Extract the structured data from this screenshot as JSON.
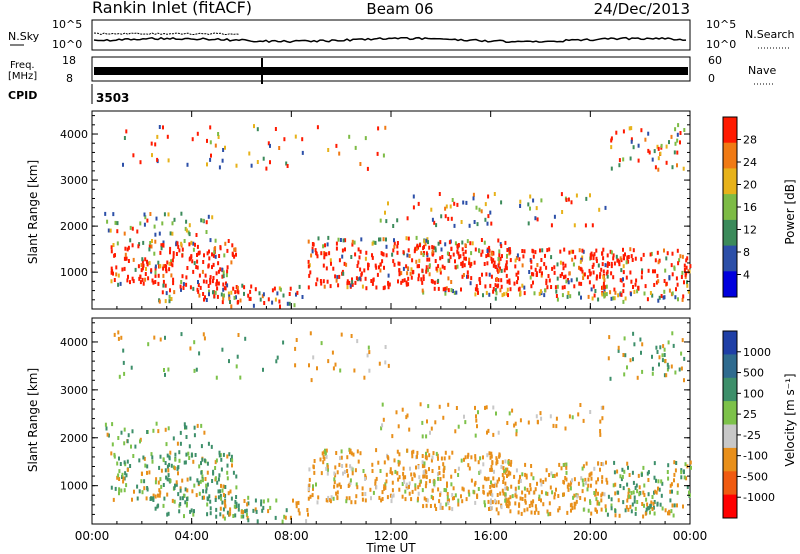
{
  "header": {
    "station": "Rankin Inlet (fitACF)",
    "beam": "Beam 06",
    "date": "24/Dec/2013"
  },
  "noise_panel": {
    "left_label": "N.Sky",
    "right_label": "N.Search",
    "tick_top": "10^5",
    "tick_bottom": "10^0"
  },
  "freq_panel": {
    "label_line1": "Freq.",
    "label_line2": "[MHz]",
    "tick_top": "18",
    "tick_bottom": "8",
    "right_label": "Nave",
    "right_tick_top": "60",
    "right_tick_bottom": "0"
  },
  "cpid": {
    "label": "CPID",
    "value": "3503"
  },
  "colors": {
    "power": [
      "#0000dd",
      "#2c4fa8",
      "#3b8a5a",
      "#7dbb45",
      "#e7b21a",
      "#f07a14",
      "#ff1a00"
    ],
    "velocity": [
      "#1f3fa6",
      "#2f6b8f",
      "#3d8f6a",
      "#7dc24a",
      "#c8c8c8",
      "#e88f1a",
      "#f05a10",
      "#ff0000"
    ]
  },
  "chart_data": [
    {
      "type": "heatmap",
      "title": "",
      "xlabel": "",
      "ylabel": "Slant Range [km]",
      "x_ticks": [
        "00:00",
        "04:00",
        "08:00",
        "12:00",
        "16:00",
        "20:00",
        "00:00"
      ],
      "y_ticks": [
        1000,
        2000,
        3000,
        4000
      ],
      "ylim": [
        200,
        4500
      ],
      "colorbar": {
        "label": "Power [dB]",
        "ticks": [
          4,
          8,
          12,
          16,
          20,
          24,
          28
        ]
      }
    },
    {
      "type": "heatmap",
      "title": "",
      "xlabel": "Time UT",
      "ylabel": "Slant Range [km]",
      "x_ticks": [
        "00:00",
        "04:00",
        "08:00",
        "12:00",
        "16:00",
        "20:00",
        "00:00"
      ],
      "y_ticks": [
        1000,
        2000,
        3000,
        4000
      ],
      "ylim": [
        200,
        4500
      ],
      "colorbar": {
        "label": "Velocity [m s⁻¹]",
        "ticks": [
          1000,
          500,
          100,
          25,
          -25,
          -100,
          -500,
          -1000
        ]
      }
    }
  ]
}
